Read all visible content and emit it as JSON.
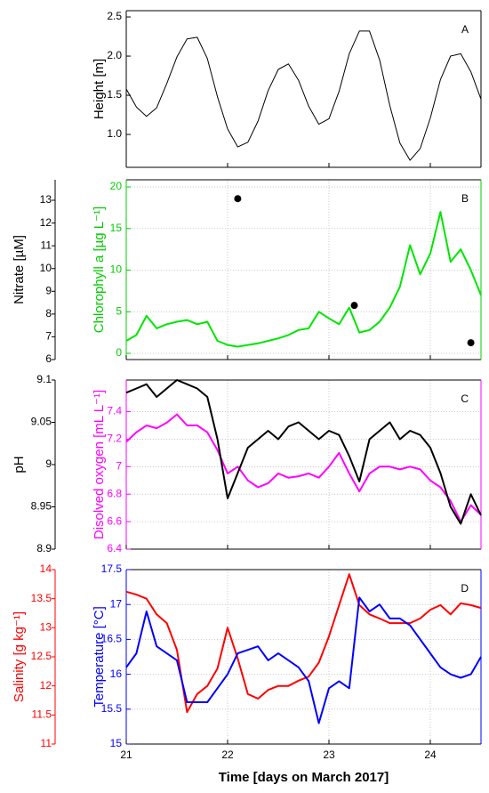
{
  "chart_data": [
    {
      "type": "line",
      "label": "A",
      "ylabel": "Height [m]",
      "ycolor": "#000000",
      "xlim": [
        21,
        24.5
      ],
      "xticks": [
        21,
        22,
        23,
        24
      ],
      "ylim": [
        0.58,
        2.58
      ],
      "yticks": [
        {
          "value": 1,
          "label": "1.0"
        },
        1.5,
        {
          "value": 2,
          "label": "2.0"
        },
        2.5
      ],
      "grid": false,
      "x": [
        21.0,
        21.1,
        21.2,
        21.3,
        21.4,
        21.5,
        21.6,
        21.7,
        21.8,
        21.9,
        22.0,
        22.1,
        22.2,
        22.3,
        22.4,
        22.5,
        22.6,
        22.7,
        22.8,
        22.9,
        23.0,
        23.1,
        23.2,
        23.3,
        23.4,
        23.5,
        23.6,
        23.7,
        23.8,
        23.9,
        24.0,
        24.1,
        24.2,
        24.3,
        24.4,
        24.5
      ],
      "series": [
        {
          "color": "#000000",
          "values": [
            1.58,
            1.35,
            1.23,
            1.34,
            1.65,
            1.99,
            2.22,
            2.24,
            1.97,
            1.48,
            1.07,
            0.84,
            0.9,
            1.17,
            1.56,
            1.83,
            1.9,
            1.69,
            1.36,
            1.13,
            1.2,
            1.55,
            2.03,
            2.32,
            2.32,
            1.95,
            1.37,
            0.89,
            0.67,
            0.82,
            1.21,
            1.7,
            2.0,
            2.03,
            1.8,
            1.45
          ]
        }
      ]
    },
    {
      "type": "line",
      "label": "B",
      "ylabel": "Chlorophyll a [µg L⁻¹]",
      "ycolor": "#00cc00",
      "y2label": "Nitrate [µM]",
      "y2color": "#000000",
      "xlim": [
        21,
        24.5
      ],
      "xticks": [
        21,
        22,
        23,
        24
      ],
      "ylim": [
        -0.75,
        20.86
      ],
      "yticks": [
        0,
        5,
        10,
        15,
        20
      ],
      "y2lim": [
        6,
        13.9
      ],
      "y2ticks": [
        6,
        7,
        8,
        9,
        10,
        11,
        12,
        13
      ],
      "grid": true,
      "x": [
        21.0,
        21.1,
        21.2,
        21.3,
        21.4,
        21.5,
        21.6,
        21.7,
        21.8,
        21.9,
        22.0,
        22.1,
        22.2,
        22.3,
        22.4,
        22.5,
        22.6,
        22.7,
        22.8,
        22.9,
        23.0,
        23.1,
        23.2,
        23.3,
        23.4,
        23.5,
        23.6,
        23.7,
        23.8,
        23.9,
        24.0,
        24.1,
        24.2,
        24.3,
        24.4,
        24.5
      ],
      "series": [
        {
          "color": "#00e600",
          "values": [
            1.5,
            2.2,
            4.5,
            3.0,
            3.5,
            3.8,
            4.0,
            3.5,
            3.8,
            1.5,
            1.0,
            0.8,
            1.0,
            1.2,
            1.5,
            1.8,
            2.2,
            2.8,
            3.0,
            5.0,
            4.2,
            3.5,
            5.5,
            2.5,
            2.8,
            3.8,
            5.5,
            8.0,
            13.0,
            9.5,
            12.0,
            17.0,
            11.0,
            12.5,
            10.0,
            7.0
          ]
        },
        {
          "type": "scatter",
          "axis": "y2",
          "color": "#000000",
          "x": [
            22.1,
            23.25,
            24.4
          ],
          "values": [
            13.07,
            8.38,
            6.74
          ]
        }
      ]
    },
    {
      "type": "line",
      "label": "C",
      "ylabel": "Disolved oxygen [mL L⁻¹]",
      "ycolor": "#ff00ff",
      "y2label": "pH",
      "y2color": "#000000",
      "xlim": [
        21,
        24.5
      ],
      "xticks": [
        21,
        22,
        23,
        24
      ],
      "ylim": [
        6.4,
        7.63
      ],
      "yticks": [
        6.4,
        6.6,
        6.8,
        7,
        7.2,
        7.4
      ],
      "y2lim": [
        8.9,
        9.1
      ],
      "y2ticks": [
        8.9,
        8.95,
        9,
        9.05,
        9.1
      ],
      "grid": true,
      "x": [
        21.0,
        21.1,
        21.2,
        21.3,
        21.4,
        21.5,
        21.6,
        21.7,
        21.8,
        21.9,
        22.0,
        22.1,
        22.2,
        22.3,
        22.4,
        22.5,
        22.6,
        22.7,
        22.8,
        22.9,
        23.0,
        23.1,
        23.2,
        23.3,
        23.4,
        23.5,
        23.6,
        23.7,
        23.8,
        23.9,
        24.0,
        24.1,
        24.2,
        24.3,
        24.4,
        24.5
      ],
      "series": [
        {
          "color": "#ff00ff",
          "values": [
            7.18,
            7.25,
            7.3,
            7.28,
            7.32,
            7.38,
            7.3,
            7.3,
            7.25,
            7.12,
            6.95,
            7.0,
            6.9,
            6.85,
            6.88,
            6.95,
            6.92,
            6.93,
            6.95,
            6.92,
            7.0,
            7.1,
            6.95,
            6.82,
            6.95,
            7.0,
            7.0,
            6.98,
            7.0,
            6.98,
            6.9,
            6.85,
            6.75,
            6.6,
            6.72,
            6.65
          ]
        },
        {
          "axis": "y2",
          "color": "#000000",
          "values": [
            9.085,
            9.09,
            9.095,
            9.08,
            9.09,
            9.1,
            9.095,
            9.09,
            9.08,
            9.03,
            8.96,
            8.99,
            9.02,
            9.03,
            9.04,
            9.03,
            9.045,
            9.05,
            9.04,
            9.03,
            9.04,
            9.035,
            9.01,
            8.98,
            9.03,
            9.04,
            9.05,
            9.03,
            9.04,
            9.035,
            9.02,
            8.99,
            8.95,
            8.93,
            8.965,
            8.94
          ]
        }
      ]
    },
    {
      "type": "line",
      "label": "D",
      "ylabel": "Temperature [°C]",
      "ycolor": "#0000ff",
      "y2label": "Salinity [g kg⁻¹]",
      "y2color": "#ff0000",
      "xlabel": "Time [days on March 2017]",
      "xlim": [
        21,
        24.5
      ],
      "xticks": [
        21,
        22,
        23,
        24
      ],
      "ylim": [
        15,
        17.5
      ],
      "yticks": [
        15,
        15.5,
        16,
        16.5,
        17,
        17.5
      ],
      "y2lim": [
        11,
        14
      ],
      "y2ticks": [
        11,
        11.5,
        12,
        12.5,
        13,
        13.5,
        14
      ],
      "grid": true,
      "x": [
        21.0,
        21.1,
        21.2,
        21.3,
        21.4,
        21.5,
        21.6,
        21.7,
        21.8,
        21.9,
        22.0,
        22.1,
        22.2,
        22.3,
        22.4,
        22.5,
        22.6,
        22.7,
        22.8,
        22.9,
        23.0,
        23.1,
        23.2,
        23.3,
        23.4,
        23.5,
        23.6,
        23.7,
        23.8,
        23.9,
        24.0,
        24.1,
        24.2,
        24.3,
        24.4,
        24.5
      ],
      "series": [
        {
          "axis": "y2",
          "color": "#ff0000",
          "values": [
            13.62,
            13.57,
            13.5,
            13.23,
            13.08,
            12.62,
            11.55,
            11.86,
            12.0,
            12.3,
            13.0,
            12.47,
            11.86,
            11.78,
            11.93,
            12.0,
            12.0,
            12.09,
            12.16,
            12.4,
            12.85,
            13.39,
            13.92,
            13.39,
            13.23,
            13.16,
            13.08,
            13.08,
            13.08,
            13.16,
            13.31,
            13.39,
            13.23,
            13.42,
            13.39,
            13.34
          ]
        },
        {
          "color": "#0000ff",
          "values": [
            16.1,
            16.3,
            16.9,
            16.4,
            16.3,
            16.2,
            15.6,
            15.6,
            15.6,
            15.8,
            16.0,
            16.3,
            16.35,
            16.4,
            16.2,
            16.3,
            16.2,
            16.1,
            15.9,
            15.3,
            15.8,
            15.9,
            15.8,
            17.1,
            16.9,
            17.0,
            16.8,
            16.8,
            16.7,
            16.5,
            16.3,
            16.1,
            16.0,
            15.95,
            16.0,
            16.25
          ]
        }
      ]
    }
  ]
}
